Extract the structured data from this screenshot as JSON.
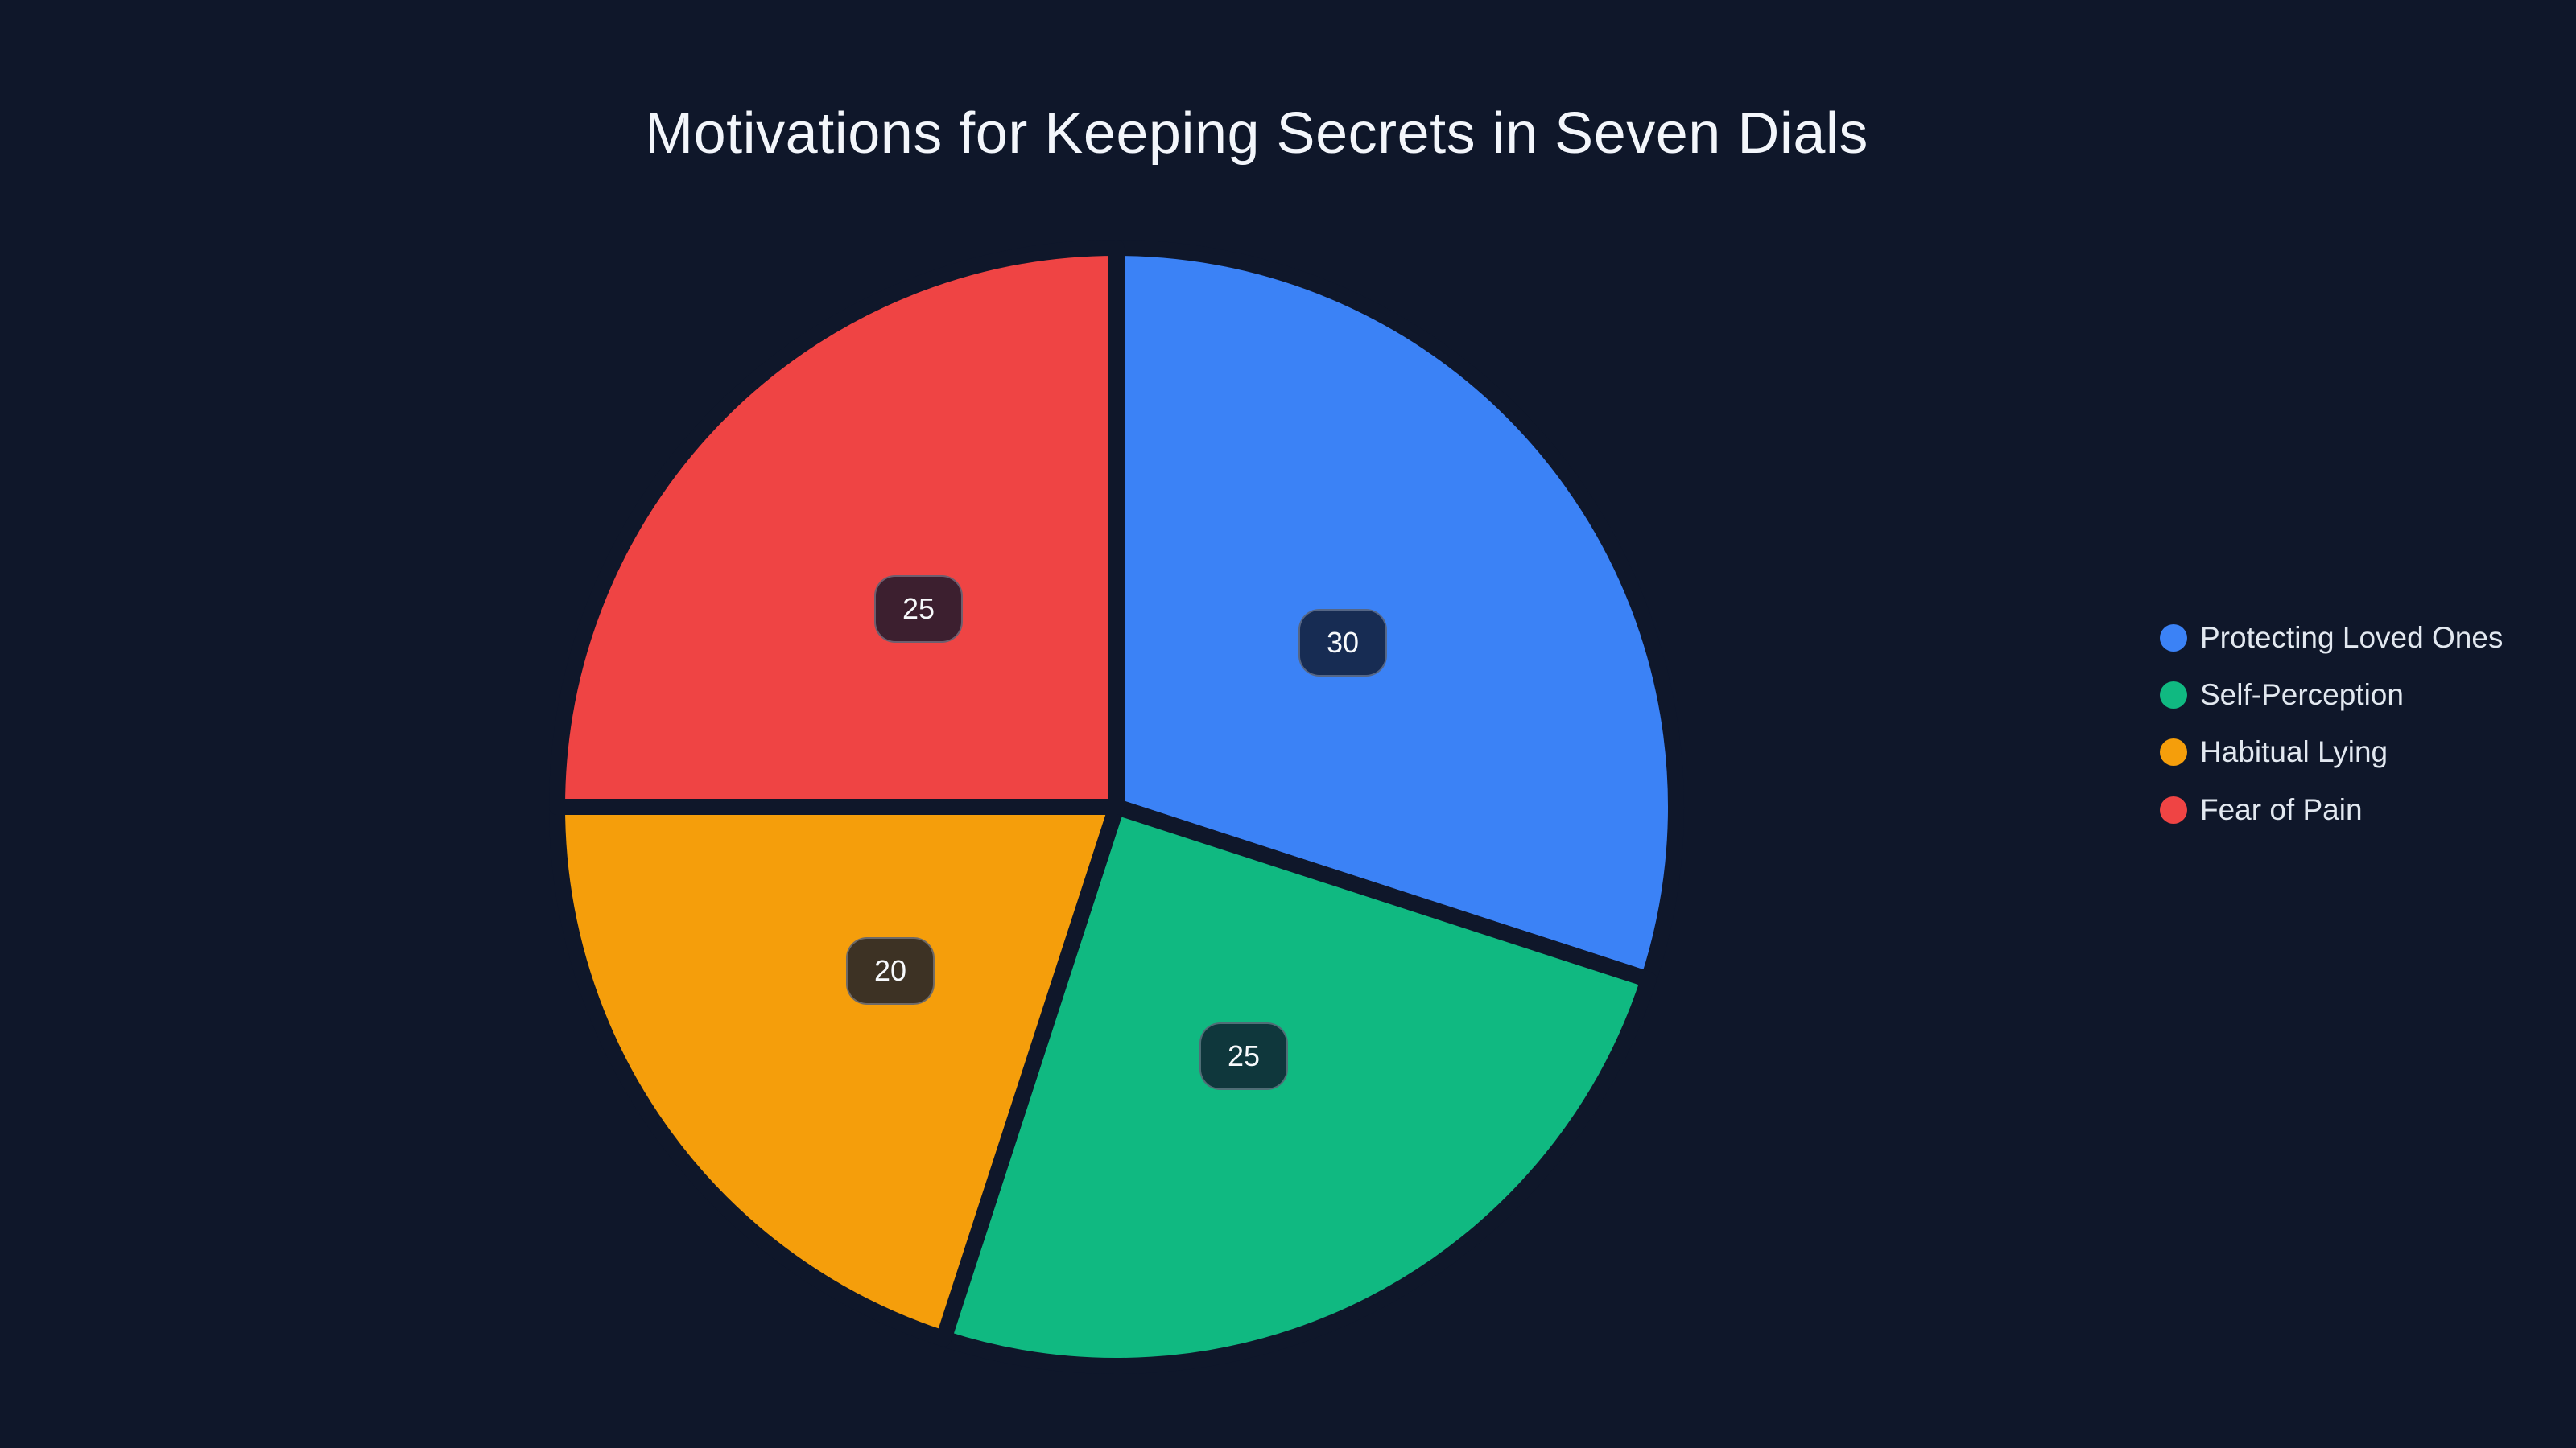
{
  "chart_data": {
    "type": "pie",
    "title": "Motivations for Keeping Secrets in Seven Dials",
    "legend_position": "right",
    "start_angle_deg": 0,
    "direction": "clockwise",
    "value_labels": "shown",
    "total": 100,
    "slices": [
      {
        "label": "Protecting Loved Ones",
        "value": 30,
        "color": "#3b82f6"
      },
      {
        "label": "Self-Perception",
        "value": 25,
        "color": "#10b981"
      },
      {
        "label": "Habitual Lying",
        "value": 20,
        "color": "#f59e0b"
      },
      {
        "label": "Fear of Pain",
        "value": 25,
        "color": "#ef4444"
      }
    ]
  },
  "theme": {
    "background": "#0f172a",
    "title_color": "#f3f6fb",
    "legend_text_color": "#e2e8f0",
    "badge_background": "rgba(15,23,42,0.8)",
    "badge_text_color": "#f8fafc",
    "slice_gap_color": "#0f172a"
  }
}
